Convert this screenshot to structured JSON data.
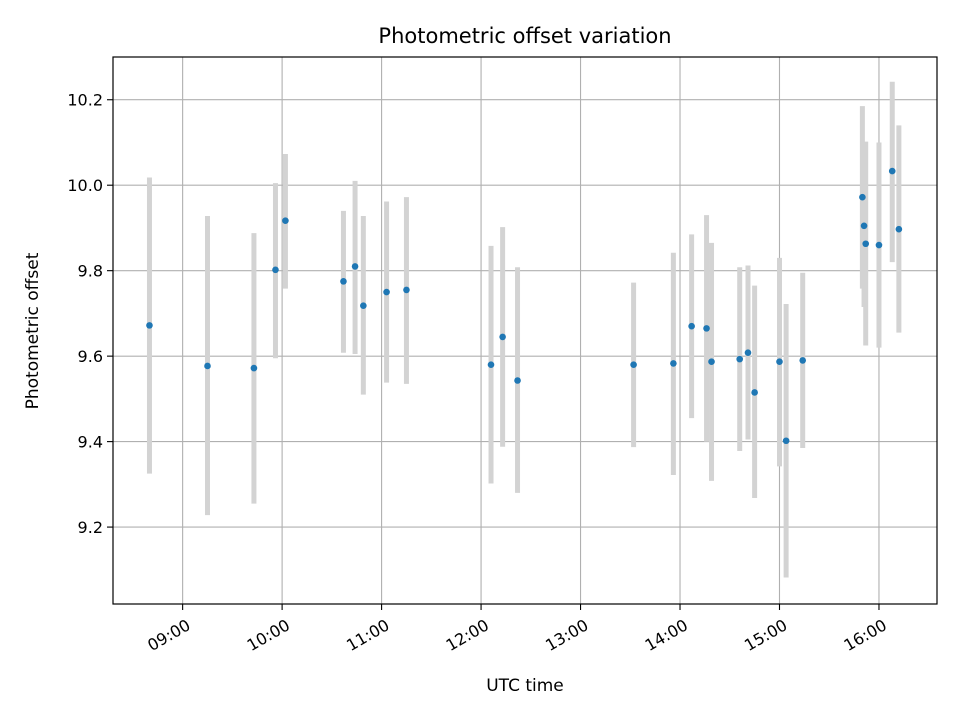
{
  "chart_data": {
    "type": "scatter",
    "title": "Photometric offset variation",
    "xlabel": "UTC time",
    "ylabel": "Photometric offset",
    "xlim": [
      "08:18",
      "16:35"
    ],
    "ylim": [
      9.02,
      10.3
    ],
    "grid": true,
    "x_ticks": [
      "09:00",
      "10:00",
      "11:00",
      "12:00",
      "13:00",
      "14:00",
      "15:00",
      "16:00"
    ],
    "y_ticks": [
      9.2,
      9.4,
      9.6,
      9.8,
      10.0,
      10.2
    ],
    "marker_color": "#1f77b4",
    "errorbar_color": "#d3d3d3",
    "points": [
      {
        "x": "08:40",
        "y": 9.672,
        "yerr_low": 9.325,
        "yerr_high": 10.018
      },
      {
        "x": "09:15",
        "y": 9.577,
        "yerr_low": 9.228,
        "yerr_high": 9.928
      },
      {
        "x": "09:43",
        "y": 9.572,
        "yerr_low": 9.255,
        "yerr_high": 9.888
      },
      {
        "x": "09:56",
        "y": 9.802,
        "yerr_low": 9.595,
        "yerr_high": 10.005
      },
      {
        "x": "10:02",
        "y": 9.917,
        "yerr_low": 9.758,
        "yerr_high": 10.073
      },
      {
        "x": "10:37",
        "y": 9.775,
        "yerr_low": 9.608,
        "yerr_high": 9.94
      },
      {
        "x": "10:44",
        "y": 9.81,
        "yerr_low": 9.605,
        "yerr_high": 10.01
      },
      {
        "x": "10:49",
        "y": 9.718,
        "yerr_low": 9.51,
        "yerr_high": 9.928
      },
      {
        "x": "11:03",
        "y": 9.75,
        "yerr_low": 9.538,
        "yerr_high": 9.962
      },
      {
        "x": "11:15",
        "y": 9.755,
        "yerr_low": 9.535,
        "yerr_high": 9.972
      },
      {
        "x": "12:06",
        "y": 9.58,
        "yerr_low": 9.302,
        "yerr_high": 9.858
      },
      {
        "x": "12:13",
        "y": 9.645,
        "yerr_low": 9.388,
        "yerr_high": 9.902
      },
      {
        "x": "12:22",
        "y": 9.543,
        "yerr_low": 9.28,
        "yerr_high": 9.808
      },
      {
        "x": "13:32",
        "y": 9.58,
        "yerr_low": 9.387,
        "yerr_high": 9.772
      },
      {
        "x": "13:56",
        "y": 9.583,
        "yerr_low": 9.322,
        "yerr_high": 9.842
      },
      {
        "x": "14:07",
        "y": 9.67,
        "yerr_low": 9.455,
        "yerr_high": 9.885
      },
      {
        "x": "14:16",
        "y": 9.665,
        "yerr_low": 9.4,
        "yerr_high": 9.93
      },
      {
        "x": "14:19",
        "y": 9.587,
        "yerr_low": 9.308,
        "yerr_high": 9.865
      },
      {
        "x": "14:36",
        "y": 9.593,
        "yerr_low": 9.378,
        "yerr_high": 9.808
      },
      {
        "x": "14:41",
        "y": 9.608,
        "yerr_low": 9.405,
        "yerr_high": 9.812
      },
      {
        "x": "14:45",
        "y": 9.515,
        "yerr_low": 9.268,
        "yerr_high": 9.765
      },
      {
        "x": "15:00",
        "y": 9.587,
        "yerr_low": 9.342,
        "yerr_high": 9.83
      },
      {
        "x": "15:04",
        "y": 9.402,
        "yerr_low": 9.082,
        "yerr_high": 9.722
      },
      {
        "x": "15:14",
        "y": 9.59,
        "yerr_low": 9.385,
        "yerr_high": 9.795
      },
      {
        "x": "15:50",
        "y": 9.972,
        "yerr_low": 9.758,
        "yerr_high": 10.185
      },
      {
        "x": "15:51",
        "y": 9.905,
        "yerr_low": 9.715,
        "yerr_high": 10.095
      },
      {
        "x": "15:52",
        "y": 9.863,
        "yerr_low": 9.625,
        "yerr_high": 10.102
      },
      {
        "x": "16:00",
        "y": 9.86,
        "yerr_low": 9.62,
        "yerr_high": 10.1
      },
      {
        "x": "16:08",
        "y": 10.033,
        "yerr_low": 9.82,
        "yerr_high": 10.242
      },
      {
        "x": "16:12",
        "y": 9.897,
        "yerr_low": 9.655,
        "yerr_high": 10.14
      }
    ]
  }
}
